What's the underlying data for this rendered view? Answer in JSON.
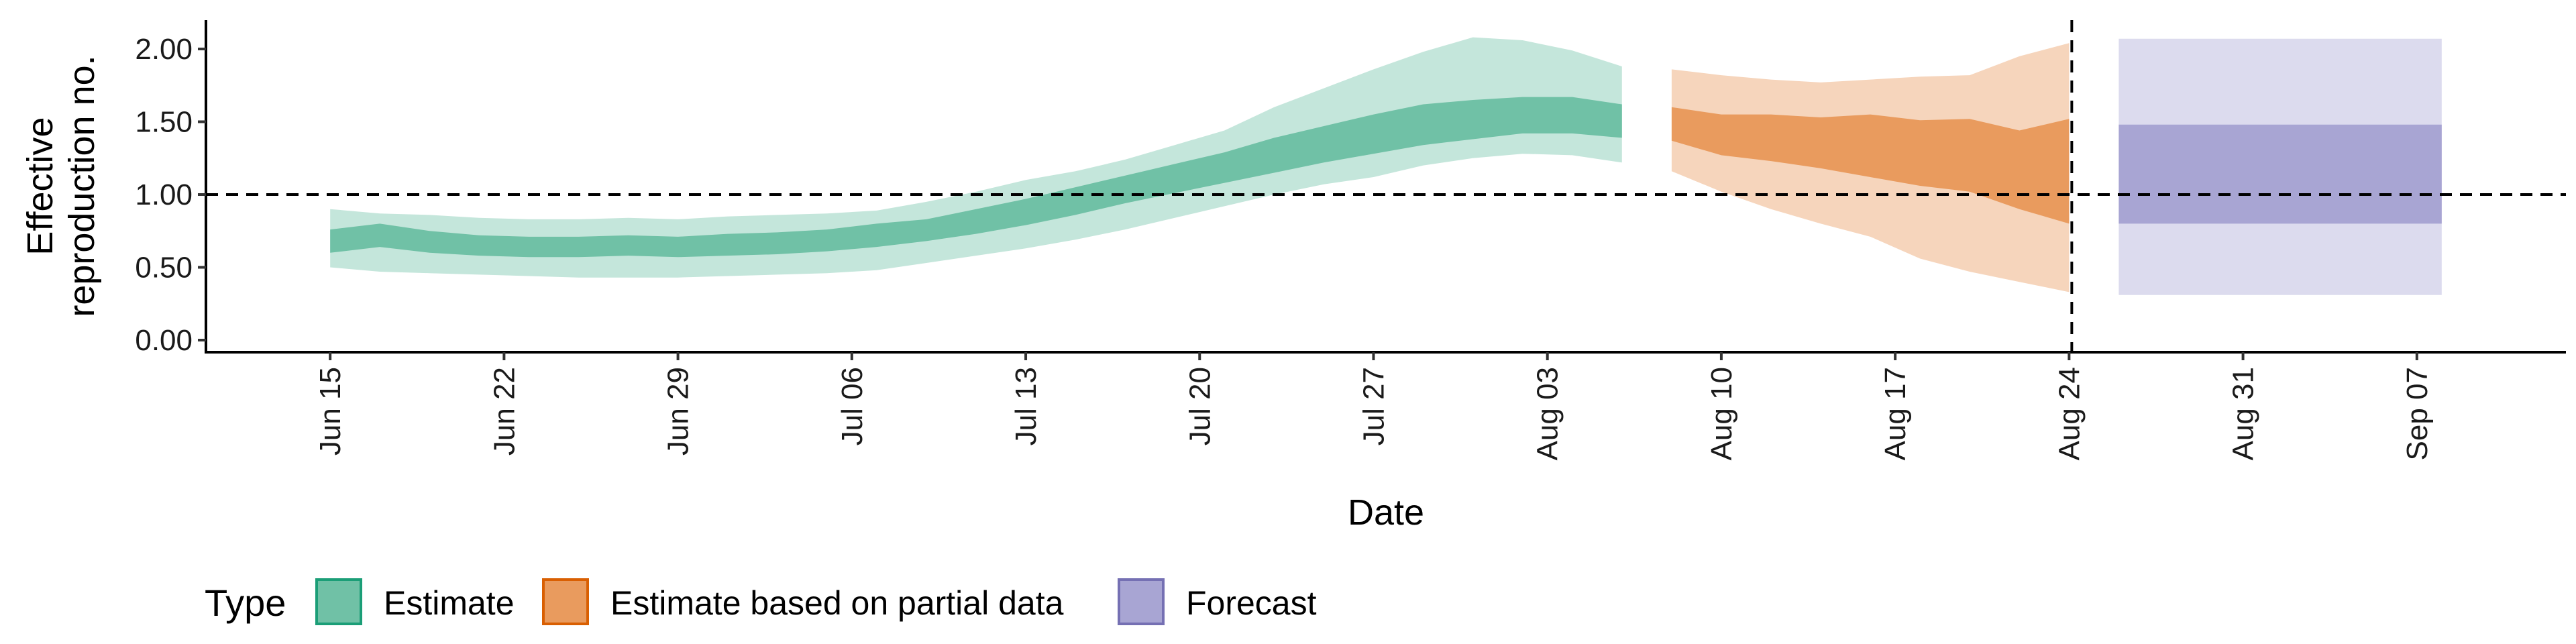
{
  "chart_data": {
    "type": "area",
    "xlabel": "Date",
    "ylabel": "Effective\nreproduction no.",
    "ylim": [
      0,
      2.2
    ],
    "yticks": [
      0.0,
      0.5,
      1.0,
      1.5,
      2.0
    ],
    "ytick_labels": [
      "0.00",
      "0.50",
      "1.00",
      "1.50",
      "2.00"
    ],
    "xlim": [
      "2020-06-10",
      "2020-09-13"
    ],
    "xticks": [
      "2020-06-15",
      "2020-06-22",
      "2020-06-29",
      "2020-07-06",
      "2020-07-13",
      "2020-07-20",
      "2020-07-27",
      "2020-08-03",
      "2020-08-10",
      "2020-08-17",
      "2020-08-24",
      "2020-08-31",
      "2020-09-07"
    ],
    "xtick_labels": [
      "Jun 15",
      "Jun 22",
      "Jun 29",
      "Jul 06",
      "Jul 13",
      "Jul 20",
      "Jul 27",
      "Aug 03",
      "Aug 10",
      "Aug 17",
      "Aug 24",
      "Aug 31",
      "Sep 07"
    ],
    "reference_line_y": 1.0,
    "forecast_start_line": "2020-08-24",
    "grid": false,
    "legend": {
      "title": "Type",
      "position": "bottom",
      "items": [
        {
          "label": "Estimate",
          "fill": "#70c1a6",
          "stroke": "#1b9e77"
        },
        {
          "label": "Estimate based on partial data",
          "fill": "#e99b5e",
          "stroke": "#d95f02"
        },
        {
          "label": "Forecast",
          "fill": "#a8a5d3",
          "stroke": "#7570b3"
        }
      ]
    },
    "series": [
      {
        "name": "Estimate",
        "fill_inner": "#70c1a6",
        "fill_outer": "#c4e6db",
        "dates": [
          "2020-06-15",
          "2020-06-17",
          "2020-06-19",
          "2020-06-21",
          "2020-06-23",
          "2020-06-25",
          "2020-06-27",
          "2020-06-29",
          "2020-07-01",
          "2020-07-03",
          "2020-07-05",
          "2020-07-07",
          "2020-07-09",
          "2020-07-11",
          "2020-07-13",
          "2020-07-15",
          "2020-07-17",
          "2020-07-19",
          "2020-07-21",
          "2020-07-23",
          "2020-07-25",
          "2020-07-27",
          "2020-07-29",
          "2020-07-31",
          "2020-08-02",
          "2020-08-04",
          "2020-08-06"
        ],
        "upper90": [
          0.9,
          0.87,
          0.86,
          0.84,
          0.83,
          0.83,
          0.84,
          0.83,
          0.85,
          0.86,
          0.87,
          0.89,
          0.95,
          1.02,
          1.1,
          1.16,
          1.24,
          1.34,
          1.44,
          1.6,
          1.73,
          1.86,
          1.98,
          2.08,
          2.06,
          1.99,
          1.88
        ],
        "upper50": [
          0.76,
          0.8,
          0.75,
          0.72,
          0.71,
          0.71,
          0.72,
          0.71,
          0.73,
          0.74,
          0.76,
          0.8,
          0.83,
          0.9,
          0.97,
          1.05,
          1.13,
          1.21,
          1.29,
          1.39,
          1.47,
          1.55,
          1.62,
          1.65,
          1.67,
          1.67,
          1.62
        ],
        "lower50": [
          0.6,
          0.64,
          0.6,
          0.58,
          0.57,
          0.57,
          0.58,
          0.57,
          0.58,
          0.59,
          0.61,
          0.64,
          0.68,
          0.73,
          0.79,
          0.86,
          0.94,
          1.01,
          1.08,
          1.15,
          1.22,
          1.28,
          1.34,
          1.38,
          1.42,
          1.42,
          1.39
        ],
        "lower90": [
          0.5,
          0.47,
          0.46,
          0.45,
          0.44,
          0.43,
          0.43,
          0.43,
          0.44,
          0.45,
          0.46,
          0.48,
          0.53,
          0.58,
          0.63,
          0.69,
          0.76,
          0.84,
          0.92,
          1.0,
          1.07,
          1.12,
          1.2,
          1.25,
          1.28,
          1.27,
          1.22
        ]
      },
      {
        "name": "Estimate based on partial data",
        "fill_inner": "#e99b5e",
        "fill_outer": "#f6d5bc",
        "dates": [
          "2020-08-08",
          "2020-08-10",
          "2020-08-12",
          "2020-08-14",
          "2020-08-16",
          "2020-08-18",
          "2020-08-20",
          "2020-08-22",
          "2020-08-24"
        ],
        "upper90": [
          1.86,
          1.82,
          1.79,
          1.77,
          1.79,
          1.81,
          1.82,
          1.95,
          2.04
        ],
        "upper50": [
          1.6,
          1.55,
          1.55,
          1.53,
          1.55,
          1.51,
          1.52,
          1.44,
          1.52
        ],
        "lower50": [
          1.37,
          1.27,
          1.23,
          1.18,
          1.12,
          1.06,
          1.02,
          0.9,
          0.8
        ],
        "lower90": [
          1.16,
          1.02,
          0.9,
          0.8,
          0.71,
          0.56,
          0.47,
          0.4,
          0.33
        ]
      },
      {
        "name": "Forecast",
        "fill_inner": "#a8a5d3",
        "fill_outer": "#dcdbee",
        "dates": [
          "2020-08-26",
          "2020-09-08"
        ],
        "upper90": [
          2.07,
          2.07
        ],
        "upper50": [
          1.48,
          1.48
        ],
        "lower50": [
          0.8,
          0.8
        ],
        "lower90": [
          0.31,
          0.31
        ]
      }
    ]
  }
}
